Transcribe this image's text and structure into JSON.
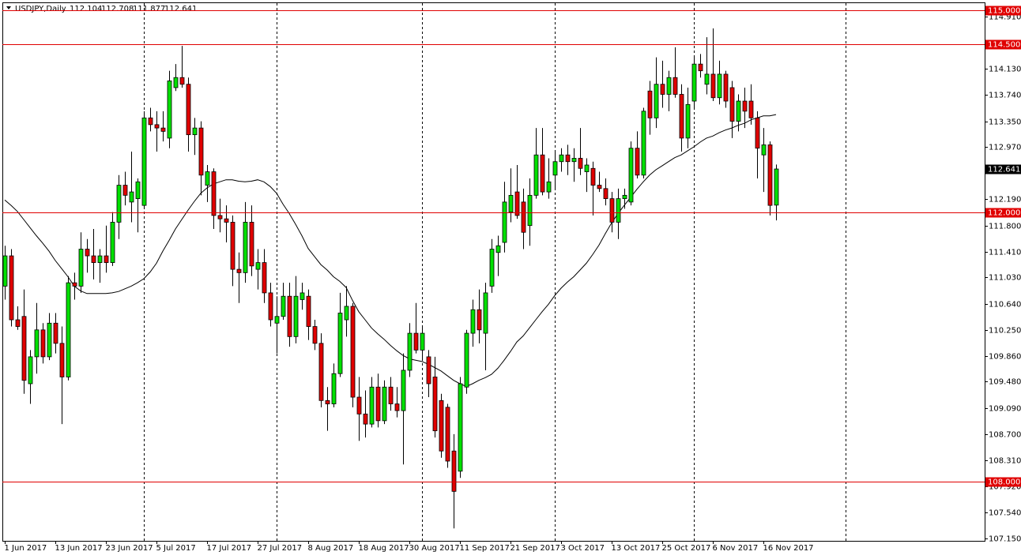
{
  "chart_data": {
    "type": "candlestick",
    "title": "USDJPY,Daily",
    "up_color": "#00e000",
    "down_color": "#e00000",
    "line_color": "#e00000",
    "grid": false,
    "categories": [
      "1 Jun 2017",
      null,
      null,
      null,
      null,
      null,
      null,
      null,
      "13 Jun 2017",
      null,
      null,
      null,
      null,
      null,
      null,
      null,
      "23 Jun 2017",
      null,
      null,
      null,
      null,
      null,
      null,
      null,
      "5 Jul 2017",
      null,
      null,
      null,
      null,
      null,
      null,
      null,
      "17 Jul 2017",
      null,
      null,
      null,
      null,
      null,
      null,
      null,
      "27 Jul 2017",
      null,
      null,
      null,
      null,
      null,
      null,
      null,
      "8 Aug 2017",
      null,
      null,
      null,
      null,
      null,
      null,
      null,
      "18 Aug 2017",
      null,
      null,
      null,
      null,
      null,
      null,
      null,
      "30 Aug 2017",
      null,
      null,
      null,
      null,
      null,
      null,
      null,
      "11 Sep 2017",
      null,
      null,
      null,
      null,
      null,
      null,
      null,
      "21 Sep 2017",
      null,
      null,
      null,
      null,
      null,
      null,
      null,
      "3 Oct 2017",
      null,
      null,
      null,
      null,
      null,
      null,
      null,
      "13 Oct 2017",
      null,
      null,
      null,
      null,
      null,
      null,
      null,
      "25 Oct 2017",
      null,
      null,
      null,
      null,
      null,
      null,
      null,
      "6 Nov 2017",
      null,
      null,
      null,
      null,
      null,
      null,
      null,
      "16 Nov 2017",
      null,
      null
    ],
    "open": [
      110.9,
      111.35,
      110.4,
      110.45,
      109.45,
      109.85,
      110.25,
      109.85,
      110.35,
      110.05,
      109.55,
      110.95,
      110.9,
      111.45,
      111.35,
      111.25,
      111.35,
      111.25,
      111.85,
      112.4,
      112.15,
      112.2,
      112.1,
      113.4,
      113.3,
      113.25,
      113.1,
      113.85,
      114.0,
      113.9,
      113.15,
      113.25,
      112.4,
      112.6,
      111.95,
      111.9,
      111.85,
      111.15,
      111.1,
      111.85,
      111.15,
      111.25,
      110.8,
      110.35,
      110.45,
      110.75,
      110.15,
      110.7,
      110.75,
      110.3,
      110.05,
      109.2,
      109.15,
      109.6,
      110.4,
      110.6,
      109.25,
      109.0,
      108.85,
      109.4,
      108.9,
      109.4,
      109.15,
      109.05,
      109.65,
      110.2,
      109.95,
      109.85,
      109.55,
      109.2,
      109.1,
      108.45,
      108.15,
      109.4,
      110.2,
      110.55,
      110.2,
      110.9,
      111.4,
      111.55,
      112.0,
      112.3,
      112.15,
      111.8,
      112.25,
      112.85,
      112.3,
      112.55,
      112.75,
      112.85,
      112.75,
      112.8,
      112.6,
      112.65,
      112.4,
      112.35,
      112.2,
      111.85,
      112.2,
      112.15,
      112.95,
      112.55,
      113.8,
      113.4,
      113.9,
      113.75,
      114.0,
      113.75,
      113.1,
      113.65,
      114.2,
      113.9,
      114.05,
      113.7,
      114.05,
      113.85,
      113.35,
      113.65,
      113.65,
      113.4,
      112.85,
      113.0,
      112.104
    ],
    "high": [
      111.5,
      111.45,
      110.6,
      110.85,
      109.95,
      110.65,
      110.35,
      110.5,
      110.5,
      110.3,
      111.05,
      111.1,
      111.7,
      111.6,
      111.75,
      111.45,
      111.8,
      112.0,
      112.55,
      112.6,
      112.9,
      112.5,
      113.5,
      113.55,
      113.5,
      113.5,
      114.1,
      114.2,
      114.47,
      114.0,
      113.4,
      113.35,
      112.7,
      112.65,
      112.2,
      112.1,
      111.95,
      111.4,
      112.15,
      112.1,
      111.45,
      111.45,
      110.95,
      110.75,
      110.95,
      110.95,
      111.05,
      110.95,
      110.85,
      110.4,
      110.2,
      109.4,
      109.75,
      110.8,
      110.9,
      110.65,
      109.55,
      109.35,
      109.55,
      109.6,
      109.5,
      109.55,
      109.4,
      109.9,
      110.35,
      110.65,
      110.3,
      109.95,
      109.85,
      109.3,
      109.15,
      108.7,
      109.55,
      110.25,
      110.7,
      110.85,
      110.95,
      111.6,
      111.65,
      112.45,
      112.65,
      112.7,
      112.35,
      112.5,
      113.25,
      113.25,
      112.8,
      112.9,
      112.95,
      113.0,
      112.95,
      113.25,
      112.8,
      112.75,
      112.6,
      112.5,
      112.3,
      112.35,
      112.35,
      113.05,
      113.2,
      113.55,
      113.95,
      114.3,
      114.25,
      114.1,
      114.45,
      113.9,
      113.85,
      114.3,
      114.35,
      114.6,
      114.73,
      114.25,
      114.1,
      113.95,
      113.75,
      113.85,
      113.9,
      113.5,
      113.25,
      113.05,
      112.708
    ],
    "low": [
      110.7,
      110.3,
      110.25,
      109.3,
      109.15,
      109.6,
      109.75,
      109.8,
      109.9,
      108.85,
      109.5,
      110.7,
      110.8,
      111.1,
      111.0,
      110.95,
      111.1,
      111.2,
      111.6,
      112.1,
      111.85,
      111.7,
      112.05,
      113.2,
      112.9,
      113.05,
      112.95,
      113.8,
      113.85,
      112.9,
      112.85,
      112.25,
      112.15,
      111.75,
      111.7,
      111.55,
      110.9,
      110.65,
      110.95,
      111.05,
      110.85,
      110.65,
      110.3,
      109.9,
      110.4,
      110.0,
      110.05,
      110.55,
      110.1,
      109.95,
      109.1,
      108.75,
      109.1,
      109.55,
      110.15,
      109.1,
      108.6,
      108.65,
      108.8,
      108.8,
      108.85,
      109.05,
      108.95,
      108.25,
      109.55,
      109.9,
      109.8,
      109.25,
      108.65,
      108.35,
      108.2,
      107.3,
      108.05,
      109.3,
      110.0,
      110.05,
      109.65,
      110.8,
      111.05,
      111.4,
      111.85,
      111.9,
      111.45,
      111.5,
      112.2,
      112.25,
      112.2,
      112.35,
      112.6,
      112.55,
      112.45,
      112.55,
      112.3,
      111.95,
      112.3,
      112.1,
      111.7,
      111.6,
      112.05,
      112.1,
      112.5,
      112.5,
      113.15,
      113.25,
      113.55,
      113.5,
      113.7,
      112.9,
      112.95,
      113.55,
      114.0,
      113.75,
      113.65,
      113.6,
      113.55,
      113.1,
      113.2,
      113.25,
      113.3,
      112.5,
      112.3,
      111.95,
      111.877
    ],
    "close": [
      111.35,
      110.4,
      110.3,
      109.5,
      109.85,
      110.25,
      109.85,
      110.35,
      110.05,
      109.55,
      110.95,
      110.9,
      111.45,
      111.35,
      111.25,
      111.35,
      111.25,
      111.85,
      112.4,
      112.25,
      112.3,
      112.45,
      113.4,
      113.3,
      113.25,
      113.2,
      113.95,
      114.0,
      113.9,
      113.15,
      113.25,
      112.55,
      112.6,
      111.95,
      111.9,
      111.85,
      111.15,
      111.1,
      111.85,
      111.2,
      111.25,
      110.8,
      110.4,
      110.45,
      110.75,
      110.15,
      110.75,
      110.8,
      110.3,
      110.05,
      109.2,
      109.15,
      109.6,
      110.5,
      110.6,
      109.25,
      109.0,
      108.85,
      109.4,
      108.9,
      109.4,
      109.15,
      109.05,
      109.65,
      110.2,
      109.95,
      110.2,
      109.45,
      108.75,
      108.45,
      108.3,
      107.85,
      109.45,
      110.2,
      110.55,
      110.25,
      110.8,
      111.45,
      111.5,
      112.15,
      112.25,
      111.95,
      111.7,
      112.25,
      112.85,
      112.3,
      112.45,
      112.75,
      112.85,
      112.75,
      112.8,
      112.65,
      112.7,
      112.4,
      112.35,
      112.2,
      111.85,
      112.2,
      112.25,
      112.95,
      112.55,
      113.5,
      113.4,
      113.9,
      113.75,
      114.0,
      113.75,
      113.1,
      113.6,
      114.2,
      114.1,
      114.05,
      113.7,
      114.05,
      113.65,
      113.35,
      113.65,
      113.5,
      113.4,
      112.95,
      113.0,
      112.1,
      112.641
    ],
    "moving_average": {
      "color": "#000000",
      "values": [
        112.18,
        112.1,
        112.01,
        111.89,
        111.77,
        111.65,
        111.54,
        111.42,
        111.28,
        111.16,
        111.04,
        110.9,
        110.83,
        110.79,
        110.79,
        110.79,
        110.79,
        110.8,
        110.82,
        110.86,
        110.9,
        110.95,
        111.01,
        111.11,
        111.24,
        111.42,
        111.58,
        111.75,
        111.89,
        112.03,
        112.16,
        112.28,
        112.36,
        112.42,
        112.45,
        112.48,
        112.48,
        112.46,
        112.45,
        112.46,
        112.48,
        112.45,
        112.38,
        112.28,
        112.12,
        111.98,
        111.82,
        111.65,
        111.46,
        111.34,
        111.22,
        111.14,
        111.04,
        110.97,
        110.88,
        110.69,
        110.52,
        110.4,
        110.28,
        110.19,
        110.11,
        110.02,
        109.94,
        109.87,
        109.82,
        109.8,
        109.78,
        109.74,
        109.69,
        109.64,
        109.57,
        109.5,
        109.45,
        109.41,
        109.45,
        109.5,
        109.54,
        109.59,
        109.68,
        109.8,
        109.93,
        110.07,
        110.16,
        110.28,
        110.4,
        110.52,
        110.63,
        110.76,
        110.87,
        110.96,
        111.04,
        111.14,
        111.24,
        111.37,
        111.51,
        111.68,
        111.84,
        111.98,
        112.1,
        112.22,
        112.34,
        112.45,
        112.55,
        112.63,
        112.69,
        112.75,
        112.81,
        112.85,
        112.91,
        112.97,
        113.04,
        113.1,
        113.13,
        113.18,
        113.22,
        113.25,
        113.29,
        113.32,
        113.37,
        113.4,
        113.43,
        113.43,
        113.45
      ]
    },
    "period_separators": [
      22,
      43,
      66,
      87,
      109,
      133
    ],
    "hlines": [
      {
        "value": 115,
        "label": "115.000"
      },
      {
        "value": 114.5,
        "label": "114.500"
      },
      {
        "value": 112,
        "label": "112.000"
      },
      {
        "value": 108,
        "label": "108.000"
      }
    ],
    "xlim": [
      -0.375,
      155
    ],
    "ylim": [
      107.115,
      115.117
    ],
    "yticks": [
      {
        "value": 114.91,
        "label": "114.910"
      },
      {
        "value": 114.13,
        "label": "114.130"
      },
      {
        "value": 113.74,
        "label": "113.740"
      },
      {
        "value": 113.35,
        "label": "113.350"
      },
      {
        "value": 112.97,
        "label": "112.970"
      },
      {
        "value": 112.19,
        "label": "112.190"
      },
      {
        "value": 111.8,
        "label": "111.800"
      },
      {
        "value": 111.41,
        "label": "111.410"
      },
      {
        "value": 111.03,
        "label": "111.030"
      },
      {
        "value": 110.64,
        "label": "110.640"
      },
      {
        "value": 110.25,
        "label": "110.250"
      },
      {
        "value": 109.86,
        "label": "109.860"
      },
      {
        "value": 109.48,
        "label": "109.480"
      },
      {
        "value": 109.09,
        "label": "109.090"
      },
      {
        "value": 108.7,
        "label": "108.700"
      },
      {
        "value": 108.31,
        "label": "108.310"
      },
      {
        "value": 107.92,
        "label": "107.920"
      },
      {
        "value": 107.54,
        "label": "107.540"
      },
      {
        "value": 107.15,
        "label": "107.150"
      }
    ]
  }
}
